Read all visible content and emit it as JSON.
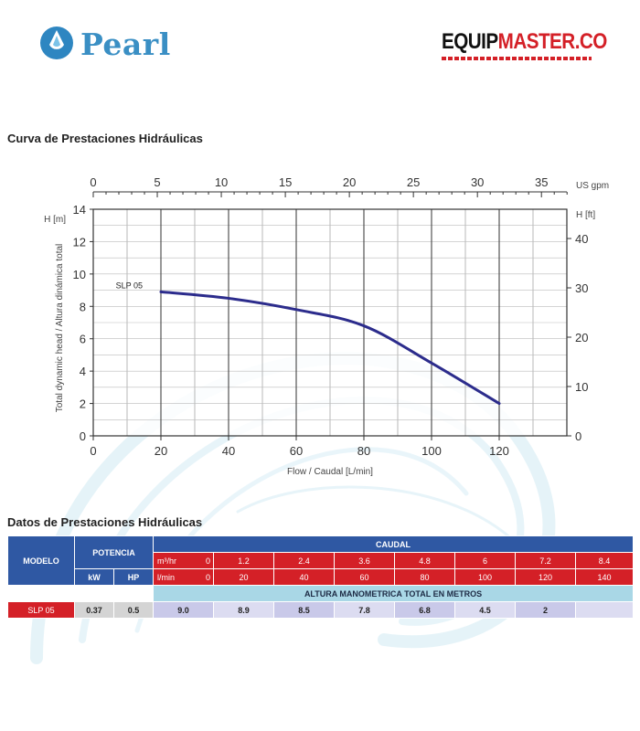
{
  "brand": {
    "pearl": "Pearl",
    "equipmaster_part1": "EQUIP",
    "equipmaster_part2": "MASTER.CO",
    "colors": {
      "pearl_blue": "#3a8fc4",
      "em_red": "#d42027"
    }
  },
  "chart_section_title": "Curva de Prestaciones Hidráulicas",
  "table_section_title": "Datos de Prestaciones Hidráulicas",
  "chart_data": {
    "type": "line",
    "xlabel": "Flow / Caudal [L/min]",
    "ylabel": "Total dynamic head / Altura dinámica total",
    "y_left_unit": "H [m]",
    "y_right_unit": "H [ft]",
    "x_top_unit": "US gpm",
    "xlim": [
      0,
      140
    ],
    "ylim": [
      0,
      14
    ],
    "x_ticks": [
      0,
      20,
      40,
      60,
      80,
      100,
      120
    ],
    "y_ticks": [
      0,
      2,
      4,
      6,
      8,
      10,
      12,
      14
    ],
    "x_top_ticks": [
      0,
      5,
      10,
      15,
      20,
      25,
      30,
      35
    ],
    "y_right_ticks": [
      0,
      10,
      20,
      30,
      40
    ],
    "grid": true,
    "series": [
      {
        "name": "SLP 05",
        "color": "#2c2c8c",
        "x": [
          20,
          40,
          60,
          80,
          100,
          120
        ],
        "y": [
          8.9,
          8.5,
          7.8,
          6.8,
          4.5,
          2
        ]
      }
    ]
  },
  "table": {
    "modelo_header": "MODELO",
    "potencia_header": "POTENCIA",
    "caudal_header": "CAUDAL",
    "kw_label": "kW",
    "hp_label": "HP",
    "m3hr_label": "m³/hr",
    "lmin_label": "l/min",
    "m3hr_values": [
      "0",
      "1.2",
      "2.4",
      "3.6",
      "4.8",
      "6",
      "7.2",
      "8.4"
    ],
    "lmin_values": [
      "0",
      "20",
      "40",
      "60",
      "80",
      "100",
      "120",
      "140"
    ],
    "altura_header": "ALTURA MANOMETRICA TOTAL EN METROS",
    "rows": [
      {
        "model": "SLP 05",
        "kw": "0.37",
        "hp": "0.5",
        "heads": [
          "9.0",
          "8.9",
          "8.5",
          "7.8",
          "6.8",
          "4.5",
          "2",
          ""
        ]
      }
    ]
  }
}
